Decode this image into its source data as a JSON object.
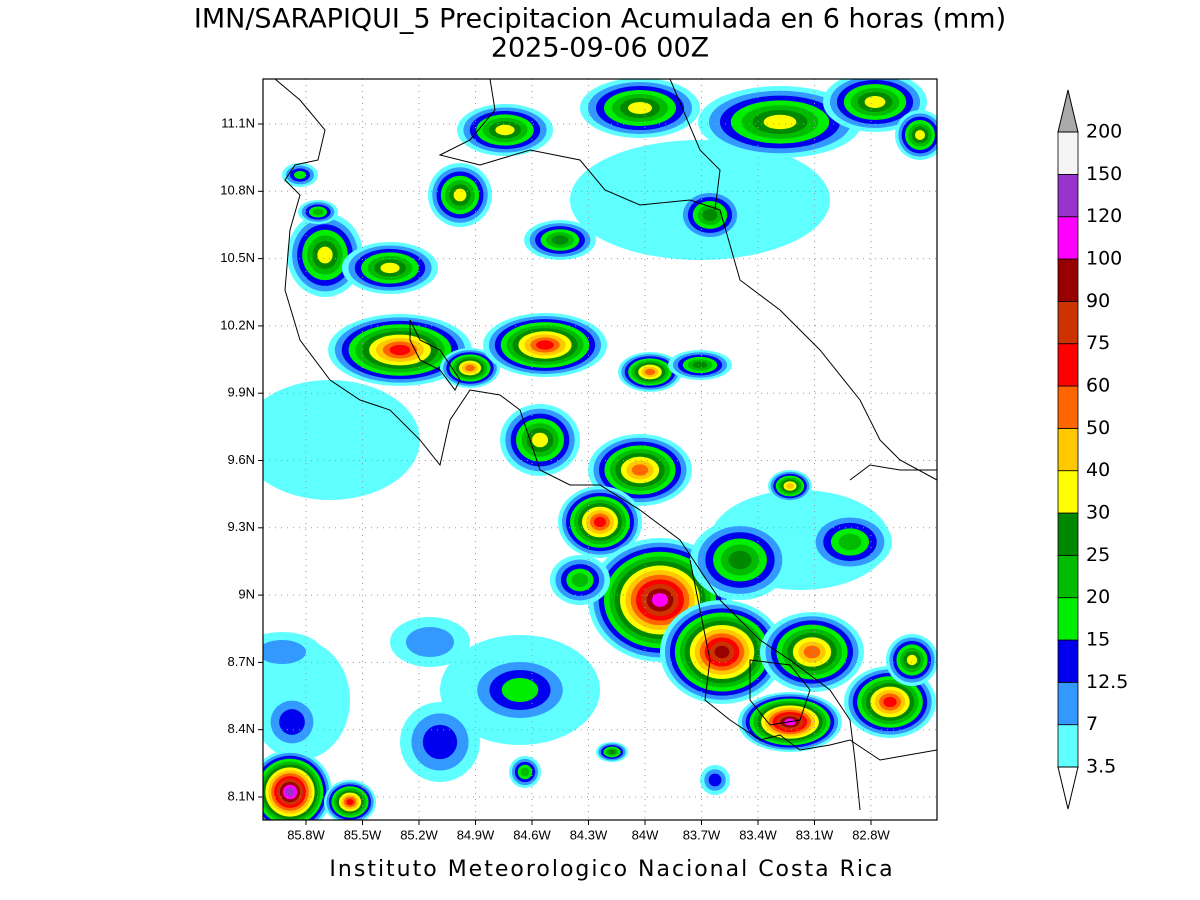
{
  "header": {
    "title": "IMN/SARAPIQUI_5 Precipitacion Acumulada en 6 horas (mm)",
    "subtitle": "2025-09-06 00Z"
  },
  "map": {
    "lat_labels": [
      "11.1N",
      "10.8N",
      "10.5N",
      "10.2N",
      "9.9N",
      "9.6N",
      "9.3N",
      "9N",
      "8.7N",
      "8.4N",
      "8.1N"
    ],
    "lon_labels": [
      "85.8W",
      "85.5W",
      "85.2W",
      "84.9W",
      "84.6W",
      "84.3W",
      "84W",
      "83.7W",
      "83.4W",
      "83.1W",
      "82.8W"
    ],
    "grid": true
  },
  "colorbar": {
    "levels": [
      3.5,
      7,
      12.5,
      15,
      20,
      25,
      30,
      40,
      50,
      60,
      75,
      90,
      100,
      120,
      150,
      200
    ],
    "colors": [
      "#5fffff",
      "#3399ff",
      "#0000ee",
      "#00ee00",
      "#00bb00",
      "#008800",
      "#ffff00",
      "#ffc800",
      "#ff6600",
      "#ff0000",
      "#cc3300",
      "#990000",
      "#ff00ff",
      "#9933cc",
      "#f5f5f5"
    ],
    "under_color": "#ffffff",
    "over_color": "#aaaaaa"
  },
  "footer": "Instituto Meteorologico Nacional Costa Rica"
}
